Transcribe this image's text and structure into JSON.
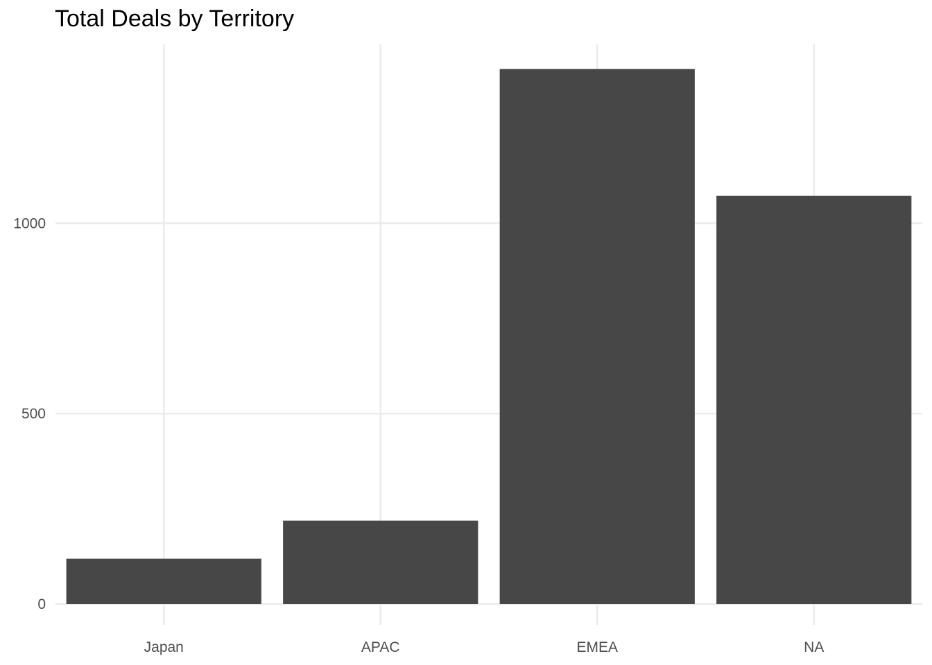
{
  "chart_data": {
    "type": "bar",
    "title": "Total Deals by Territory",
    "xlabel": "",
    "ylabel": "",
    "categories": [
      "Japan",
      "APAC",
      "EMEA",
      "NA"
    ],
    "values": [
      119,
      219,
      1405,
      1072
    ],
    "ylim": [
      0,
      1470
    ],
    "yticks": [
      0,
      500,
      1000
    ],
    "ytick_labels": [
      "0",
      "500",
      "1000"
    ],
    "grid": true,
    "legend": "none",
    "bar_color": "#474747",
    "grid_color": "#ebebeb"
  }
}
